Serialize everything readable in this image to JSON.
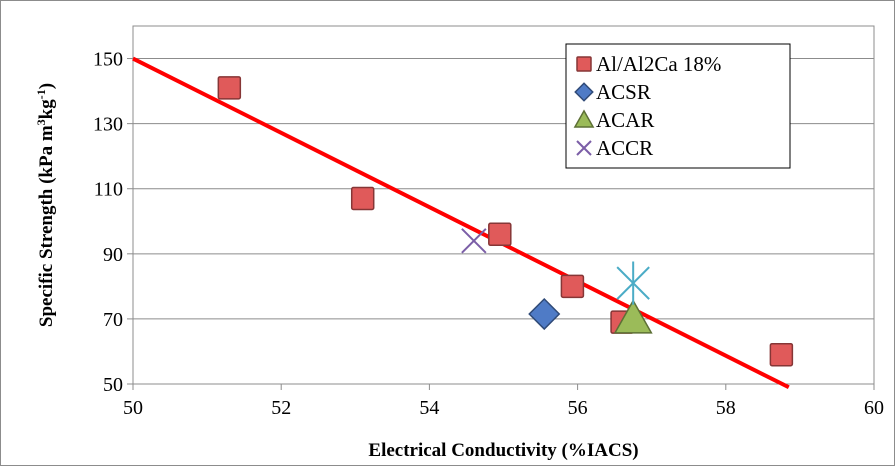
{
  "chart_data": {
    "type": "scatter",
    "xlabel": "Electrical Conductivity (%IACS)",
    "ylabel": "Specific Strength (kPa m³kg⁻¹)",
    "ylabel_parts": {
      "main": "Specific Strength (kPa m",
      "sup1": "3",
      "mid": "kg",
      "sup2": "-1",
      "end": ")"
    },
    "xlim": [
      50,
      60
    ],
    "ylim": [
      50,
      160
    ],
    "xticks": [
      50,
      52,
      54,
      56,
      58,
      60
    ],
    "yticks": [
      50,
      70,
      90,
      110,
      130,
      150
    ],
    "grid": "horizontal",
    "legend_position": "top-right",
    "series": [
      {
        "name": "Al/Al2Ca 18%",
        "marker": "square",
        "color": "#e05a5a",
        "x": [
          51.3,
          53.1,
          54.95,
          55.93,
          56.6,
          58.75
        ],
        "y": [
          141,
          107,
          96,
          80,
          69,
          59
        ]
      },
      {
        "name": "ACSR",
        "marker": "diamond",
        "color": "#4f7bc6",
        "x": [
          55.55
        ],
        "y": [
          71.5
        ]
      },
      {
        "name": "ACAR",
        "marker": "triangle",
        "color": "#9bbb59",
        "x": [
          56.75
        ],
        "y": [
          70
        ]
      },
      {
        "name": "ACCR",
        "marker": "x",
        "color": "#7b5ea7",
        "x": [
          54.6
        ],
        "y": [
          94
        ]
      },
      {
        "name": "",
        "marker": "asterisk",
        "color": "#4bacc6",
        "x": [
          56.75
        ],
        "y": [
          81
        ]
      }
    ],
    "trendline": {
      "color": "#ff0000",
      "x": [
        50,
        58.85
      ],
      "y": [
        150,
        49
      ]
    }
  }
}
